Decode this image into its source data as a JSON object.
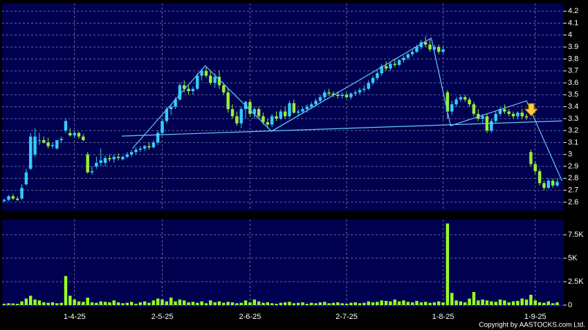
{
  "chart_data": {
    "type": "candlestick",
    "open": [
      2.61,
      2.62,
      2.65,
      2.63,
      2.63,
      2.75,
      2.88,
      3.0,
      3.12,
      3.12,
      3.1,
      3.07,
      3.05,
      3.12,
      3.2,
      3.18,
      3.16,
      3.18,
      3.15,
      3.0,
      2.85,
      2.9,
      2.93,
      2.93,
      2.97,
      2.96,
      2.98,
      2.96,
      2.98,
      3.0,
      3.02,
      3.04,
      3.05,
      3.07,
      3.06,
      3.1,
      3.18,
      3.28,
      3.38,
      3.4,
      3.46,
      3.58,
      3.55,
      3.53,
      3.55,
      3.66,
      3.7,
      3.66,
      3.6,
      3.65,
      3.58,
      3.52,
      3.38,
      3.32,
      3.26,
      3.38,
      3.44,
      3.34,
      3.38,
      3.32,
      3.27,
      3.25,
      3.32,
      3.3,
      3.36,
      3.32,
      3.43,
      3.35,
      3.36,
      3.38,
      3.4,
      3.42,
      3.45,
      3.48,
      3.52,
      3.51,
      3.5,
      3.49,
      3.5,
      3.48,
      3.51,
      3.52,
      3.54,
      3.55,
      3.6,
      3.64,
      3.68,
      3.74,
      3.72,
      3.76,
      3.75,
      3.79,
      3.81,
      3.84,
      3.86,
      3.9,
      3.94,
      3.92,
      3.88,
      3.9,
      3.86,
      3.52,
      3.36,
      3.42,
      3.46,
      3.48,
      3.46,
      3.42,
      3.34,
      3.3,
      3.32,
      3.2,
      3.28,
      3.34,
      3.38,
      3.36,
      3.34,
      3.32,
      3.35,
      3.32,
      3.02,
      2.92,
      2.86,
      2.76,
      2.72,
      2.78,
      2.74
    ],
    "high": [
      2.63,
      2.66,
      2.67,
      2.65,
      2.75,
      2.88,
      3.18,
      3.22,
      3.18,
      3.15,
      3.14,
      3.1,
      3.12,
      3.15,
      3.3,
      3.22,
      3.2,
      3.19,
      3.17,
      3.02,
      2.9,
      2.98,
      3.05,
      2.99,
      3.0,
      3.0,
      3.01,
      2.99,
      3.02,
      3.04,
      3.06,
      3.07,
      3.08,
      3.1,
      3.12,
      3.2,
      3.3,
      3.4,
      3.42,
      3.48,
      3.6,
      3.62,
      3.58,
      3.57,
      3.68,
      3.72,
      3.74,
      3.7,
      3.68,
      3.7,
      3.6,
      3.55,
      3.42,
      3.36,
      3.4,
      3.45,
      3.46,
      3.4,
      3.4,
      3.35,
      3.3,
      3.34,
      3.36,
      3.38,
      3.4,
      3.45,
      3.46,
      3.38,
      3.4,
      3.42,
      3.44,
      3.47,
      3.5,
      3.54,
      3.55,
      3.53,
      3.53,
      3.52,
      3.52,
      3.52,
      3.54,
      3.56,
      3.58,
      3.62,
      3.66,
      3.7,
      3.76,
      3.78,
      3.77,
      3.8,
      3.8,
      3.83,
      3.85,
      3.88,
      3.92,
      3.96,
      3.99,
      3.97,
      3.92,
      3.92,
      3.9,
      3.54,
      3.45,
      3.48,
      3.5,
      3.5,
      3.48,
      3.44,
      3.38,
      3.34,
      3.34,
      3.3,
      3.36,
      3.4,
      3.42,
      3.38,
      3.36,
      3.36,
      3.38,
      3.34,
      3.04,
      2.94,
      2.88,
      2.78,
      2.8,
      2.8,
      2.8
    ],
    "low": [
      2.6,
      2.61,
      2.62,
      2.61,
      2.62,
      2.74,
      2.87,
      2.98,
      3.08,
      3.09,
      3.05,
      3.05,
      3.04,
      3.1,
      3.18,
      3.15,
      3.14,
      3.13,
      3.11,
      2.84,
      2.83,
      2.88,
      2.9,
      2.9,
      2.94,
      2.93,
      2.95,
      2.95,
      2.97,
      2.98,
      3.0,
      3.02,
      3.03,
      3.04,
      3.05,
      3.08,
      3.16,
      3.26,
      3.33,
      3.38,
      3.45,
      3.52,
      3.5,
      3.5,
      3.54,
      3.62,
      3.64,
      3.58,
      3.56,
      3.55,
      3.5,
      3.35,
      3.3,
      3.24,
      3.22,
      3.3,
      3.32,
      3.3,
      3.3,
      3.25,
      3.22,
      3.23,
      3.28,
      3.29,
      3.3,
      3.31,
      3.34,
      3.32,
      3.34,
      3.35,
      3.38,
      3.4,
      3.43,
      3.46,
      3.49,
      3.48,
      3.47,
      3.47,
      3.47,
      3.46,
      3.49,
      3.5,
      3.52,
      3.54,
      3.58,
      3.62,
      3.66,
      3.7,
      3.7,
      3.73,
      3.74,
      3.77,
      3.79,
      3.82,
      3.85,
      3.88,
      3.9,
      3.86,
      3.85,
      3.84,
      3.84,
      3.3,
      3.33,
      3.4,
      3.44,
      3.44,
      3.4,
      3.32,
      3.28,
      3.26,
      3.18,
      3.18,
      3.26,
      3.32,
      3.34,
      3.32,
      3.3,
      3.3,
      3.3,
      3.29,
      2.9,
      2.84,
      2.74,
      2.7,
      2.71,
      2.72,
      2.73
    ],
    "close": [
      2.62,
      2.65,
      2.63,
      2.62,
      2.72,
      2.85,
      3.15,
      3.15,
      3.12,
      3.1,
      3.07,
      3.08,
      3.12,
      3.13,
      3.28,
      3.16,
      3.18,
      3.15,
      3.12,
      2.85,
      2.86,
      2.93,
      2.95,
      2.97,
      2.96,
      2.98,
      2.97,
      2.98,
      3.0,
      3.02,
      3.04,
      3.05,
      3.07,
      3.06,
      3.1,
      3.18,
      3.28,
      3.38,
      3.4,
      3.46,
      3.58,
      3.55,
      3.53,
      3.55,
      3.66,
      3.7,
      3.66,
      3.6,
      3.65,
      3.58,
      3.52,
      3.38,
      3.32,
      3.26,
      3.38,
      3.44,
      3.34,
      3.38,
      3.32,
      3.27,
      3.25,
      3.32,
      3.3,
      3.36,
      3.32,
      3.43,
      3.35,
      3.36,
      3.38,
      3.4,
      3.42,
      3.45,
      3.48,
      3.52,
      3.51,
      3.5,
      3.49,
      3.5,
      3.48,
      3.51,
      3.52,
      3.54,
      3.55,
      3.6,
      3.64,
      3.68,
      3.74,
      3.72,
      3.76,
      3.75,
      3.79,
      3.81,
      3.84,
      3.86,
      3.9,
      3.94,
      3.92,
      3.88,
      3.9,
      3.86,
      3.88,
      3.36,
      3.42,
      3.46,
      3.48,
      3.46,
      3.42,
      3.34,
      3.3,
      3.32,
      3.2,
      3.28,
      3.34,
      3.38,
      3.36,
      3.34,
      3.32,
      3.35,
      3.32,
      3.31,
      2.92,
      2.86,
      2.76,
      2.72,
      2.78,
      2.74,
      2.77
    ],
    "up_color": "#33ccff",
    "down_color": "#99ee33",
    "xlim": [
      -0.5,
      127.5
    ],
    "xticks": [
      {
        "value": 16,
        "label": "1-4-25"
      },
      {
        "value": 36,
        "label": "2-5-25"
      },
      {
        "value": 56,
        "label": "2-6-25"
      },
      {
        "value": 78,
        "label": "2-7-25"
      },
      {
        "value": 100,
        "label": "1-8-25"
      },
      {
        "value": 121,
        "label": "1-9-25"
      }
    ],
    "ylim": [
      2.53,
      4.265
    ],
    "yticks": [
      2.6,
      2.7,
      2.8,
      2.9,
      3,
      3.1,
      3.2,
      3.3,
      3.4,
      3.5,
      3.6,
      3.7,
      3.8,
      3.9,
      4,
      4.1,
      4.2
    ],
    "grid": true,
    "trend_lines": [
      {
        "color": "#66ccff",
        "x": [
          26.8,
          127.1
        ],
        "y": [
          3.154,
          3.281
        ]
      },
      {
        "color": "#66ccff",
        "x": [
          29.2,
          45.8,
          60.9,
          97.3,
          101.7,
          119.0,
          127.1
        ],
        "y": [
          3.05,
          3.743,
          3.194,
          3.975,
          3.24,
          3.449,
          2.778
        ]
      }
    ],
    "volume": {
      "type": "bar",
      "values": [
        150,
        200,
        180,
        150,
        400,
        700,
        1000,
        600,
        500,
        300,
        250,
        300,
        200,
        250,
        3100,
        1000,
        600,
        400,
        350,
        800,
        300,
        250,
        400,
        350,
        300,
        500,
        300,
        200,
        250,
        350,
        150,
        300,
        400,
        250,
        500,
        700,
        600,
        400,
        800,
        400,
        600,
        500,
        300,
        350,
        250,
        400,
        200,
        500,
        300,
        400,
        250,
        350,
        300,
        200,
        250,
        500,
        300,
        600,
        400,
        250,
        300,
        200,
        150,
        250,
        300,
        350,
        200,
        250,
        300,
        150,
        250,
        200,
        300,
        350,
        200,
        250,
        300,
        200,
        150,
        250,
        300,
        200,
        250,
        400,
        300,
        350,
        500,
        450,
        400,
        600,
        400,
        500,
        350,
        300,
        450,
        300,
        350,
        250,
        300,
        400,
        300,
        8700,
        1300,
        500,
        400,
        300,
        700,
        1400,
        500,
        600,
        500,
        400,
        350,
        600,
        500,
        300,
        400,
        450,
        700,
        600,
        1100,
        500,
        300,
        250,
        400,
        200,
        300
      ],
      "color": "#99ff22",
      "ylim": [
        0,
        9120
      ],
      "yticks": [
        0,
        {
          "value": 2500,
          "label": "2.5K"
        },
        {
          "value": 5000,
          "label": "5K"
        },
        {
          "value": 7500,
          "label": "7.5K"
        }
      ]
    }
  },
  "footer": "Copyright by AASTOCKS.com Ltd."
}
